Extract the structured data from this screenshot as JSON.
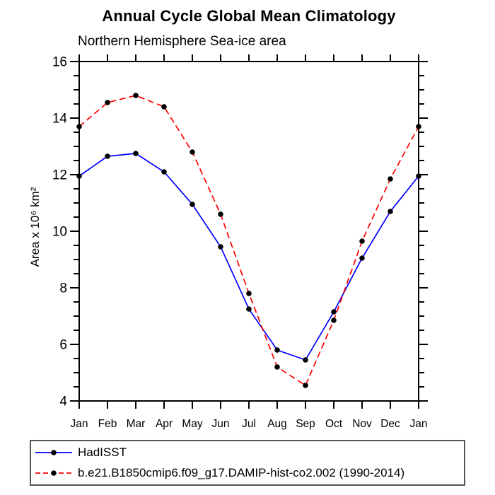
{
  "chart_data": {
    "type": "line",
    "title": "Annual Cycle Global Mean Climatology",
    "subtitle": "Northern Hemisphere Sea-ice area",
    "ylabel": "Area x 10⁶ km²",
    "xlabel": "",
    "categories": [
      "Jan",
      "Feb",
      "Mar",
      "Apr",
      "May",
      "Jun",
      "Jul",
      "Aug",
      "Sep",
      "Oct",
      "Nov",
      "Dec",
      "Jan"
    ],
    "series": [
      {
        "name": "HadISST",
        "color": "#0000ff",
        "style": "solid",
        "marker": "circle",
        "marker_color": "#000000",
        "values": [
          11.95,
          12.65,
          12.75,
          12.1,
          10.95,
          9.45,
          7.25,
          5.8,
          5.45,
          7.15,
          9.05,
          10.7,
          11.95
        ]
      },
      {
        "name": "b.e21.B1850cmip6.f09_g17.DAMIP-hist-co2.002 (1990-2014)",
        "color": "#ff0000",
        "style": "dashed",
        "marker": "circle",
        "marker_color": "#000000",
        "values": [
          13.7,
          14.55,
          14.8,
          14.4,
          12.8,
          10.6,
          7.8,
          5.2,
          4.55,
          6.85,
          9.65,
          11.85,
          13.7
        ]
      }
    ],
    "ylim": [
      4,
      16
    ],
    "ytick_labels": [
      4,
      6,
      8,
      10,
      12,
      14,
      16
    ],
    "ytick_minor_step": 0.5,
    "grid": false,
    "legend_position": "bottom",
    "axis_color": "#000000",
    "background_color": "#ffffff"
  }
}
